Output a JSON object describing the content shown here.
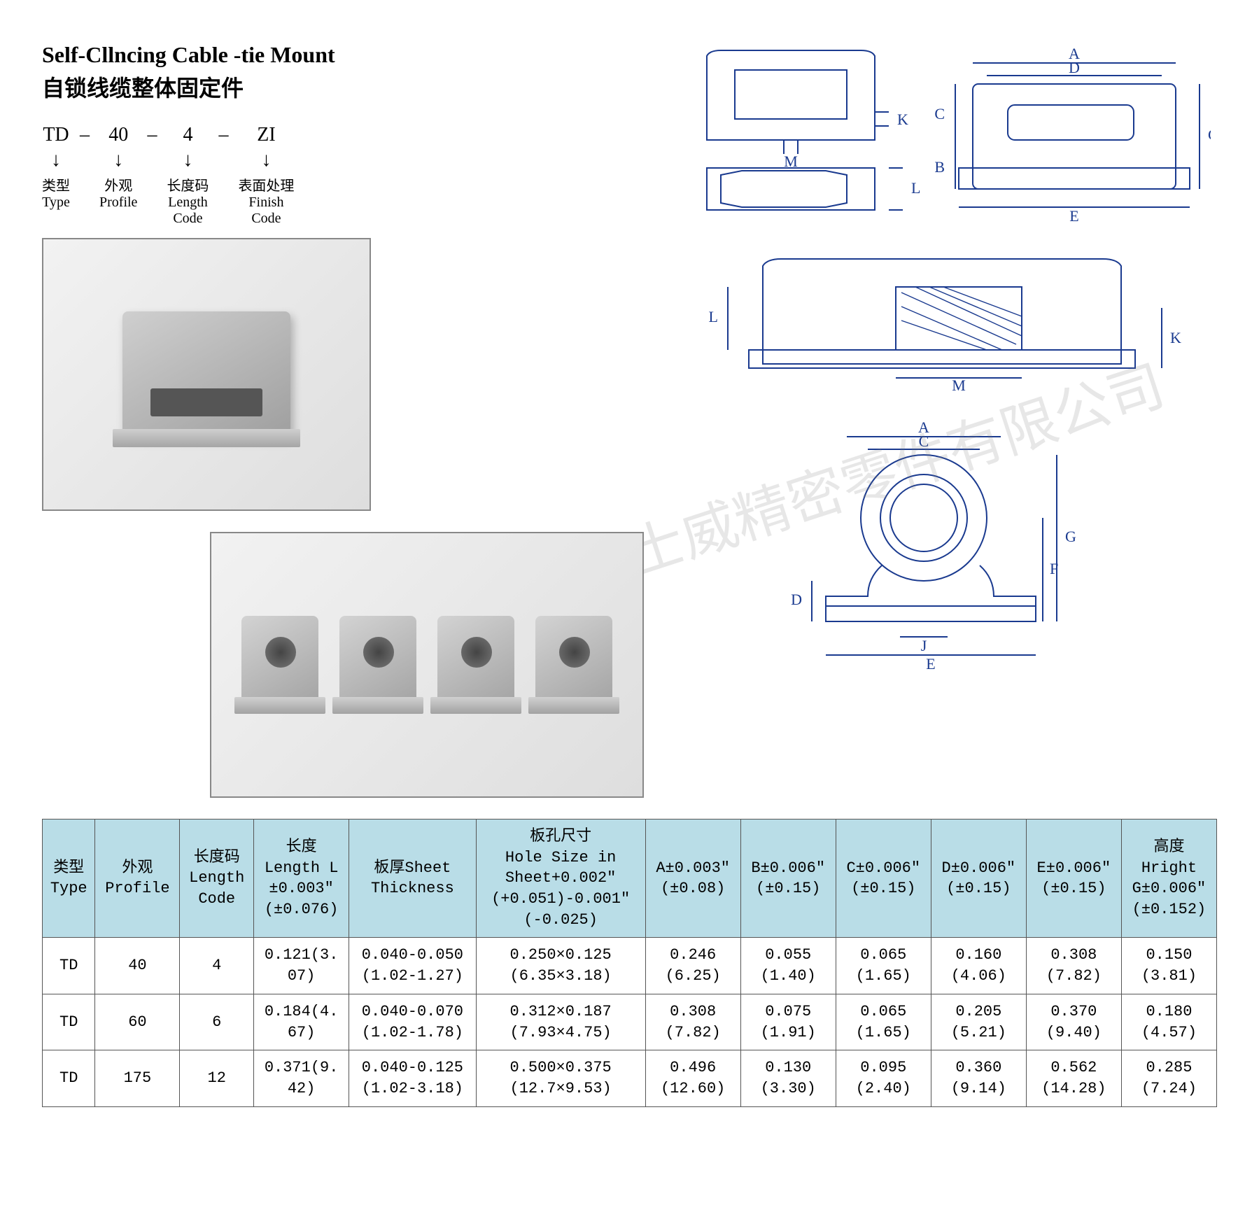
{
  "title": {
    "en": "Self-Cllncing Cable -tie Mount",
    "cn": "自锁线缆整体固定件"
  },
  "code": {
    "parts": [
      {
        "value": "TD",
        "label_cn": "类型",
        "label_en": "Type"
      },
      {
        "value": "40",
        "label_cn": "外观",
        "label_en": "Profile"
      },
      {
        "value": "4",
        "label_cn": "长度码",
        "label_en": "Length\nCode"
      },
      {
        "value": "ZI",
        "label_cn": "表面处理",
        "label_en": "Finish\nCode"
      }
    ],
    "dash": "–"
  },
  "watermark": "法士威精密零件有限公司",
  "drawings": {
    "color": "#1a3a8f",
    "dim_letters_top": [
      "A",
      "D",
      "C",
      "B",
      "E",
      "G",
      "K",
      "M",
      "L"
    ],
    "dim_letters_mid": [
      "L",
      "K",
      "M"
    ],
    "dim_letters_bot": [
      "A",
      "C",
      "D",
      "G",
      "F",
      "J",
      "E"
    ]
  },
  "table": {
    "header_bg": "#b9dde7",
    "columns": [
      "类型\nType",
      "外观\nProfile",
      "长度码\nLength\nCode",
      "长度\nLength L\n±0.003″\n(±0.076)",
      "板厚Sheet\nThickness",
      "板孔尺寸\nHole Size in\nSheet+0.002″\n(+0.051)-0.001″\n(-0.025)",
      "A±0.003″\n(±0.08)",
      "B±0.006″\n(±0.15)",
      "C±0.006″\n(±0.15)",
      "D±0.006″\n(±0.15)",
      "E±0.006″\n(±0.15)",
      "高度\nHright\nG±0.006″\n(±0.152)"
    ],
    "rows": [
      [
        "TD",
        "40",
        "4",
        "0.121(3.\n07)",
        "0.040-0.050\n(1.02-1.27)",
        "0.250×0.125\n(6.35×3.18)",
        "0.246\n(6.25)",
        "0.055\n(1.40)",
        "0.065\n(1.65)",
        "0.160\n(4.06)",
        "0.308\n(7.82)",
        "0.150\n(3.81)"
      ],
      [
        "TD",
        "60",
        "6",
        "0.184(4.\n67)",
        "0.040-0.070\n(1.02-1.78)",
        "0.312×0.187\n(7.93×4.75)",
        "0.308\n(7.82)",
        "0.075\n(1.91)",
        "0.065\n(1.65)",
        "0.205\n(5.21)",
        "0.370\n(9.40)",
        "0.180\n(4.57)"
      ],
      [
        "TD",
        "175",
        "12",
        "0.371(9.\n42)",
        "0.040-0.125\n(1.02-3.18)",
        "0.500×0.375\n(12.7×9.53)",
        "0.496\n(12.60)",
        "0.130\n(3.30)",
        "0.095\n(2.40)",
        "0.360\n(9.14)",
        "0.562\n(14.28)",
        "0.285\n(7.24)"
      ]
    ]
  }
}
